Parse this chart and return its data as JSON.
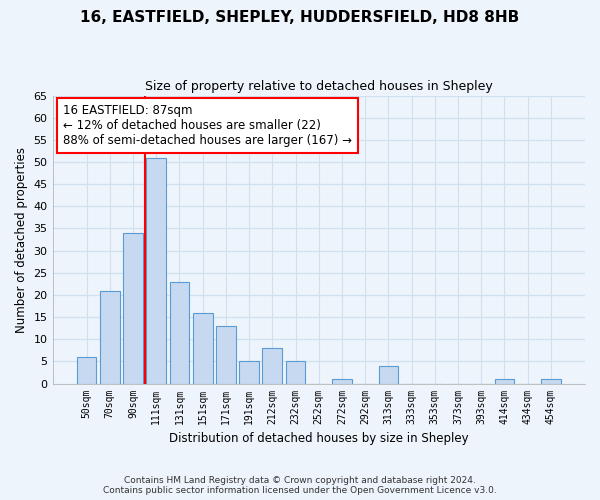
{
  "title": "16, EASTFIELD, SHEPLEY, HUDDERSFIELD, HD8 8HB",
  "subtitle": "Size of property relative to detached houses in Shepley",
  "xlabel": "Distribution of detached houses by size in Shepley",
  "ylabel": "Number of detached properties",
  "bar_labels": [
    "50sqm",
    "70sqm",
    "90sqm",
    "111sqm",
    "131sqm",
    "151sqm",
    "171sqm",
    "191sqm",
    "212sqm",
    "232sqm",
    "252sqm",
    "272sqm",
    "292sqm",
    "313sqm",
    "333sqm",
    "353sqm",
    "373sqm",
    "393sqm",
    "414sqm",
    "434sqm",
    "454sqm"
  ],
  "bar_values": [
    6,
    21,
    34,
    51,
    23,
    16,
    13,
    5,
    8,
    5,
    0,
    1,
    0,
    4,
    0,
    0,
    0,
    0,
    1,
    0,
    1
  ],
  "bar_color": "#c6d9f0",
  "bar_edge_color": "#5a9bd5",
  "vline_index": 2,
  "vline_color": "red",
  "ylim": [
    0,
    65
  ],
  "yticks": [
    0,
    5,
    10,
    15,
    20,
    25,
    30,
    35,
    40,
    45,
    50,
    55,
    60,
    65
  ],
  "annotation_line1": "16 EASTFIELD: 87sqm",
  "annotation_line2": "← 12% of detached houses are smaller (22)",
  "annotation_line3": "88% of semi-detached houses are larger (167) →",
  "footer_line1": "Contains HM Land Registry data © Crown copyright and database right 2024.",
  "footer_line2": "Contains public sector information licensed under the Open Government Licence v3.0.",
  "bg_color": "#eef4fb",
  "grid_color": "#d0e0f0"
}
